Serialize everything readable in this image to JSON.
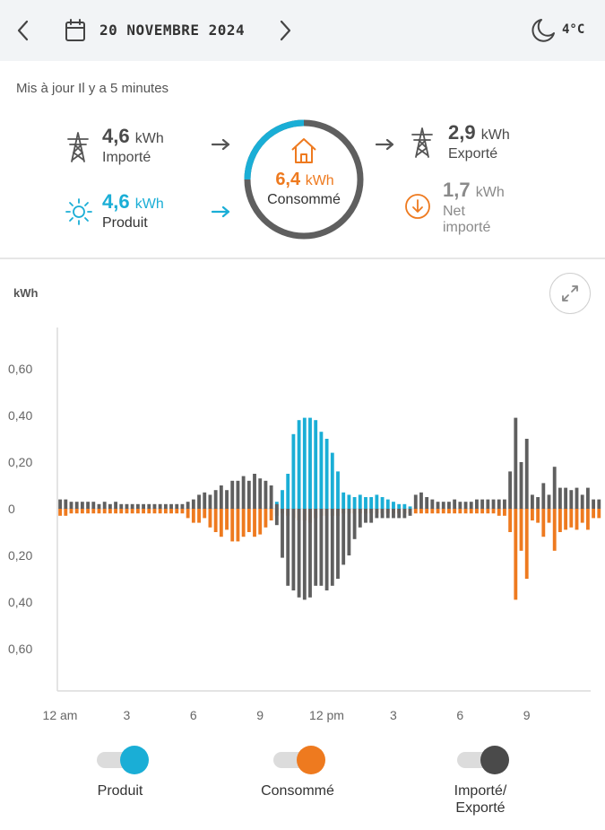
{
  "header": {
    "date": "20 NOVEMBRE 2024",
    "temperature": "4°C",
    "prev_icon": "chevron-left-icon",
    "next_icon": "chevron-right-icon",
    "calendar_icon": "calendar-icon",
    "weather_icon": "moon-icon"
  },
  "summary": {
    "updated": "Mis à jour Il y a 5 minutes",
    "imported": {
      "value": "4,6",
      "unit": "kWh",
      "label": "Importé"
    },
    "produced": {
      "value": "4,6",
      "unit": "kWh",
      "label": "Produit"
    },
    "consumed": {
      "value": "6,4",
      "unit": "kWh",
      "label": "Consommé"
    },
    "exported": {
      "value": "2,9",
      "unit": "kWh",
      "label": "Exporté"
    },
    "net": {
      "value": "1,7",
      "unit": "kWh",
      "label_line1": "Net",
      "label_line2": "importé"
    }
  },
  "colors": {
    "produced": "#1aaed6",
    "consumed": "#ee7a1f",
    "grid": "#5f5f5f",
    "ring_dark": "#5f5f5f"
  },
  "legend": {
    "produced": "Produit",
    "consumed": "Consommé",
    "grid_line1": "Importé/",
    "grid_line2": "Exporté"
  },
  "chart_data": {
    "type": "bar",
    "ylabel": "kWh",
    "ylim": [
      -0.78,
      0.78
    ],
    "y_ticks": [
      "0,60",
      "0,40",
      "0,20",
      "0",
      "0,20",
      "0,40",
      "0,60"
    ],
    "y_tick_values": [
      0.6,
      0.4,
      0.2,
      0,
      -0.2,
      -0.4,
      -0.6
    ],
    "x_ticks": [
      "12 am",
      "3",
      "6",
      "9",
      "12 pm",
      "3",
      "6",
      "9"
    ],
    "x_tick_hours": [
      0,
      3,
      6,
      9,
      12,
      15,
      18,
      21
    ],
    "interval_hours": 0.25,
    "series": [
      {
        "name": "Produit",
        "direction": "up",
        "values": [
          0,
          0,
          0,
          0,
          0,
          0,
          0,
          0,
          0,
          0,
          0,
          0,
          0,
          0,
          0,
          0,
          0,
          0,
          0,
          0,
          0,
          0,
          0,
          0,
          0,
          0,
          0,
          0,
          0,
          0,
          0,
          0,
          0,
          0,
          0,
          0,
          0,
          0,
          0.01,
          0.03,
          0.08,
          0.15,
          0.32,
          0.38,
          0.39,
          0.39,
          0.38,
          0.33,
          0.3,
          0.24,
          0.16,
          0.07,
          0.06,
          0.05,
          0.06,
          0.05,
          0.05,
          0.06,
          0.05,
          0.04,
          0.03,
          0.02,
          0.02,
          0.01,
          0,
          0,
          0,
          0,
          0,
          0,
          0,
          0,
          0,
          0,
          0,
          0,
          0,
          0,
          0,
          0,
          0,
          0,
          0,
          0,
          0,
          0,
          0,
          0,
          0,
          0,
          0,
          0,
          0,
          0,
          0,
          0
        ]
      },
      {
        "name": "Importé/Exporté",
        "direction": "up",
        "values": [
          0.04,
          0.04,
          0.03,
          0.03,
          0.03,
          0.03,
          0.03,
          0.02,
          0.03,
          0.02,
          0.03,
          0.02,
          0.02,
          0.02,
          0.02,
          0.02,
          0.02,
          0.02,
          0.02,
          0.02,
          0.02,
          0.02,
          0.02,
          0.03,
          0.04,
          0.06,
          0.07,
          0.06,
          0.08,
          0.1,
          0.08,
          0.12,
          0.12,
          0.14,
          0.12,
          0.15,
          0.13,
          0.12,
          0.1,
          0.02,
          0,
          0,
          0,
          0,
          0,
          0,
          0,
          0,
          0,
          0,
          0,
          0,
          0,
          0,
          0,
          0,
          0,
          0,
          0,
          0,
          0,
          0,
          0,
          0,
          0.06,
          0.07,
          0.05,
          0.04,
          0.03,
          0.03,
          0.03,
          0.04,
          0.03,
          0.03,
          0.03,
          0.04,
          0.04,
          0.04,
          0.04,
          0.04,
          0.04,
          0.16,
          0.39,
          0.2,
          0.3,
          0.06,
          0.05,
          0.11,
          0.06,
          0.18,
          0.09,
          0.09,
          0.08,
          0.09,
          0.06,
          0.09,
          0.04,
          0.04
        ]
      },
      {
        "name": "Consommé",
        "direction": "down",
        "values": [
          0.03,
          0.03,
          0.02,
          0.02,
          0.02,
          0.02,
          0.02,
          0.02,
          0.02,
          0.02,
          0.02,
          0.02,
          0.02,
          0.02,
          0.02,
          0.02,
          0.02,
          0.02,
          0.02,
          0.02,
          0.02,
          0.02,
          0.02,
          0.04,
          0.06,
          0.06,
          0.04,
          0.08,
          0.1,
          0.12,
          0.09,
          0.14,
          0.14,
          0.12,
          0.1,
          0.12,
          0.11,
          0.08,
          0.05,
          0.03,
          0.02,
          0.03,
          0.04,
          0.05,
          0.05,
          0.06,
          0.04,
          0.03,
          0.03,
          0.03,
          0.03,
          0.02,
          0.02,
          0.02,
          0.02,
          0.02,
          0.02,
          0.02,
          0.02,
          0.02,
          0.02,
          0.02,
          0.02,
          0.02,
          0.02,
          0.02,
          0.02,
          0.02,
          0.02,
          0.02,
          0.02,
          0.02,
          0.02,
          0.02,
          0.02,
          0.02,
          0.02,
          0.02,
          0.02,
          0.03,
          0.03,
          0.1,
          0.39,
          0.18,
          0.3,
          0.05,
          0.06,
          0.12,
          0.06,
          0.18,
          0.1,
          0.09,
          0.08,
          0.09,
          0.06,
          0.09,
          0.04,
          0.04
        ]
      },
      {
        "name": "Importé/Exporté",
        "direction": "down",
        "values": [
          0,
          0,
          0,
          0,
          0,
          0,
          0,
          0,
          0,
          0,
          0,
          0,
          0,
          0,
          0,
          0,
          0,
          0,
          0,
          0,
          0,
          0,
          0,
          0,
          0,
          0,
          0,
          0,
          0,
          0,
          0,
          0,
          0,
          0,
          0,
          0,
          0,
          0,
          0,
          0.07,
          0.21,
          0.33,
          0.35,
          0.38,
          0.39,
          0.38,
          0.33,
          0.33,
          0.35,
          0.33,
          0.3,
          0.24,
          0.2,
          0.13,
          0.08,
          0.06,
          0.06,
          0.04,
          0.04,
          0.04,
          0.04,
          0.04,
          0.04,
          0.03,
          0,
          0,
          0,
          0,
          0,
          0,
          0,
          0,
          0,
          0,
          0,
          0,
          0,
          0,
          0,
          0,
          0,
          0,
          0,
          0,
          0,
          0,
          0,
          0,
          0,
          0,
          0,
          0,
          0,
          0,
          0,
          0
        ]
      }
    ],
    "grid": false,
    "legend_position": "bottom"
  }
}
